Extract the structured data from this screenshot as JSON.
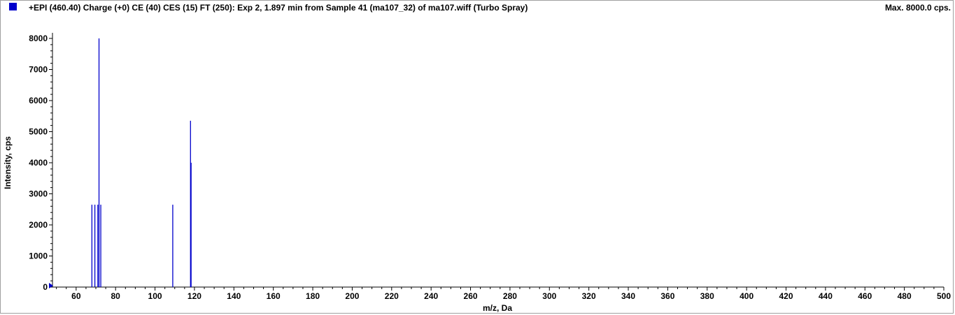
{
  "header": {
    "title": "+EPI (460.40) Charge (+0) CE (40) CES (15) FT (250): Exp 2, 1.897 min from Sample 41 (ma107_32) of ma107.wiff (Turbo Spray)",
    "max_label": "Max. 8000.0 cps.",
    "series_color": "#0000cc"
  },
  "chart_data": {
    "type": "bar",
    "xlabel": "m/z, Da",
    "ylabel": "Intensity, cps",
    "xlim": [
      48,
      500
    ],
    "ylim": [
      0,
      8000
    ],
    "xticks": [
      60,
      80,
      100,
      120,
      140,
      160,
      180,
      200,
      220,
      240,
      260,
      280,
      300,
      320,
      340,
      360,
      380,
      400,
      420,
      440,
      460,
      480,
      500
    ],
    "yticks": [
      0,
      1000,
      2000,
      3000,
      4000,
      5000,
      6000,
      7000,
      8000
    ],
    "grid": false,
    "series": [
      {
        "x": [
          68.0,
          69.5,
          71.0,
          71.6,
          72.5,
          109.0,
          118.0,
          118.3
        ],
        "values": [
          2650,
          2650,
          2650,
          8000,
          2650,
          2650,
          5350,
          4000
        ]
      }
    ]
  }
}
